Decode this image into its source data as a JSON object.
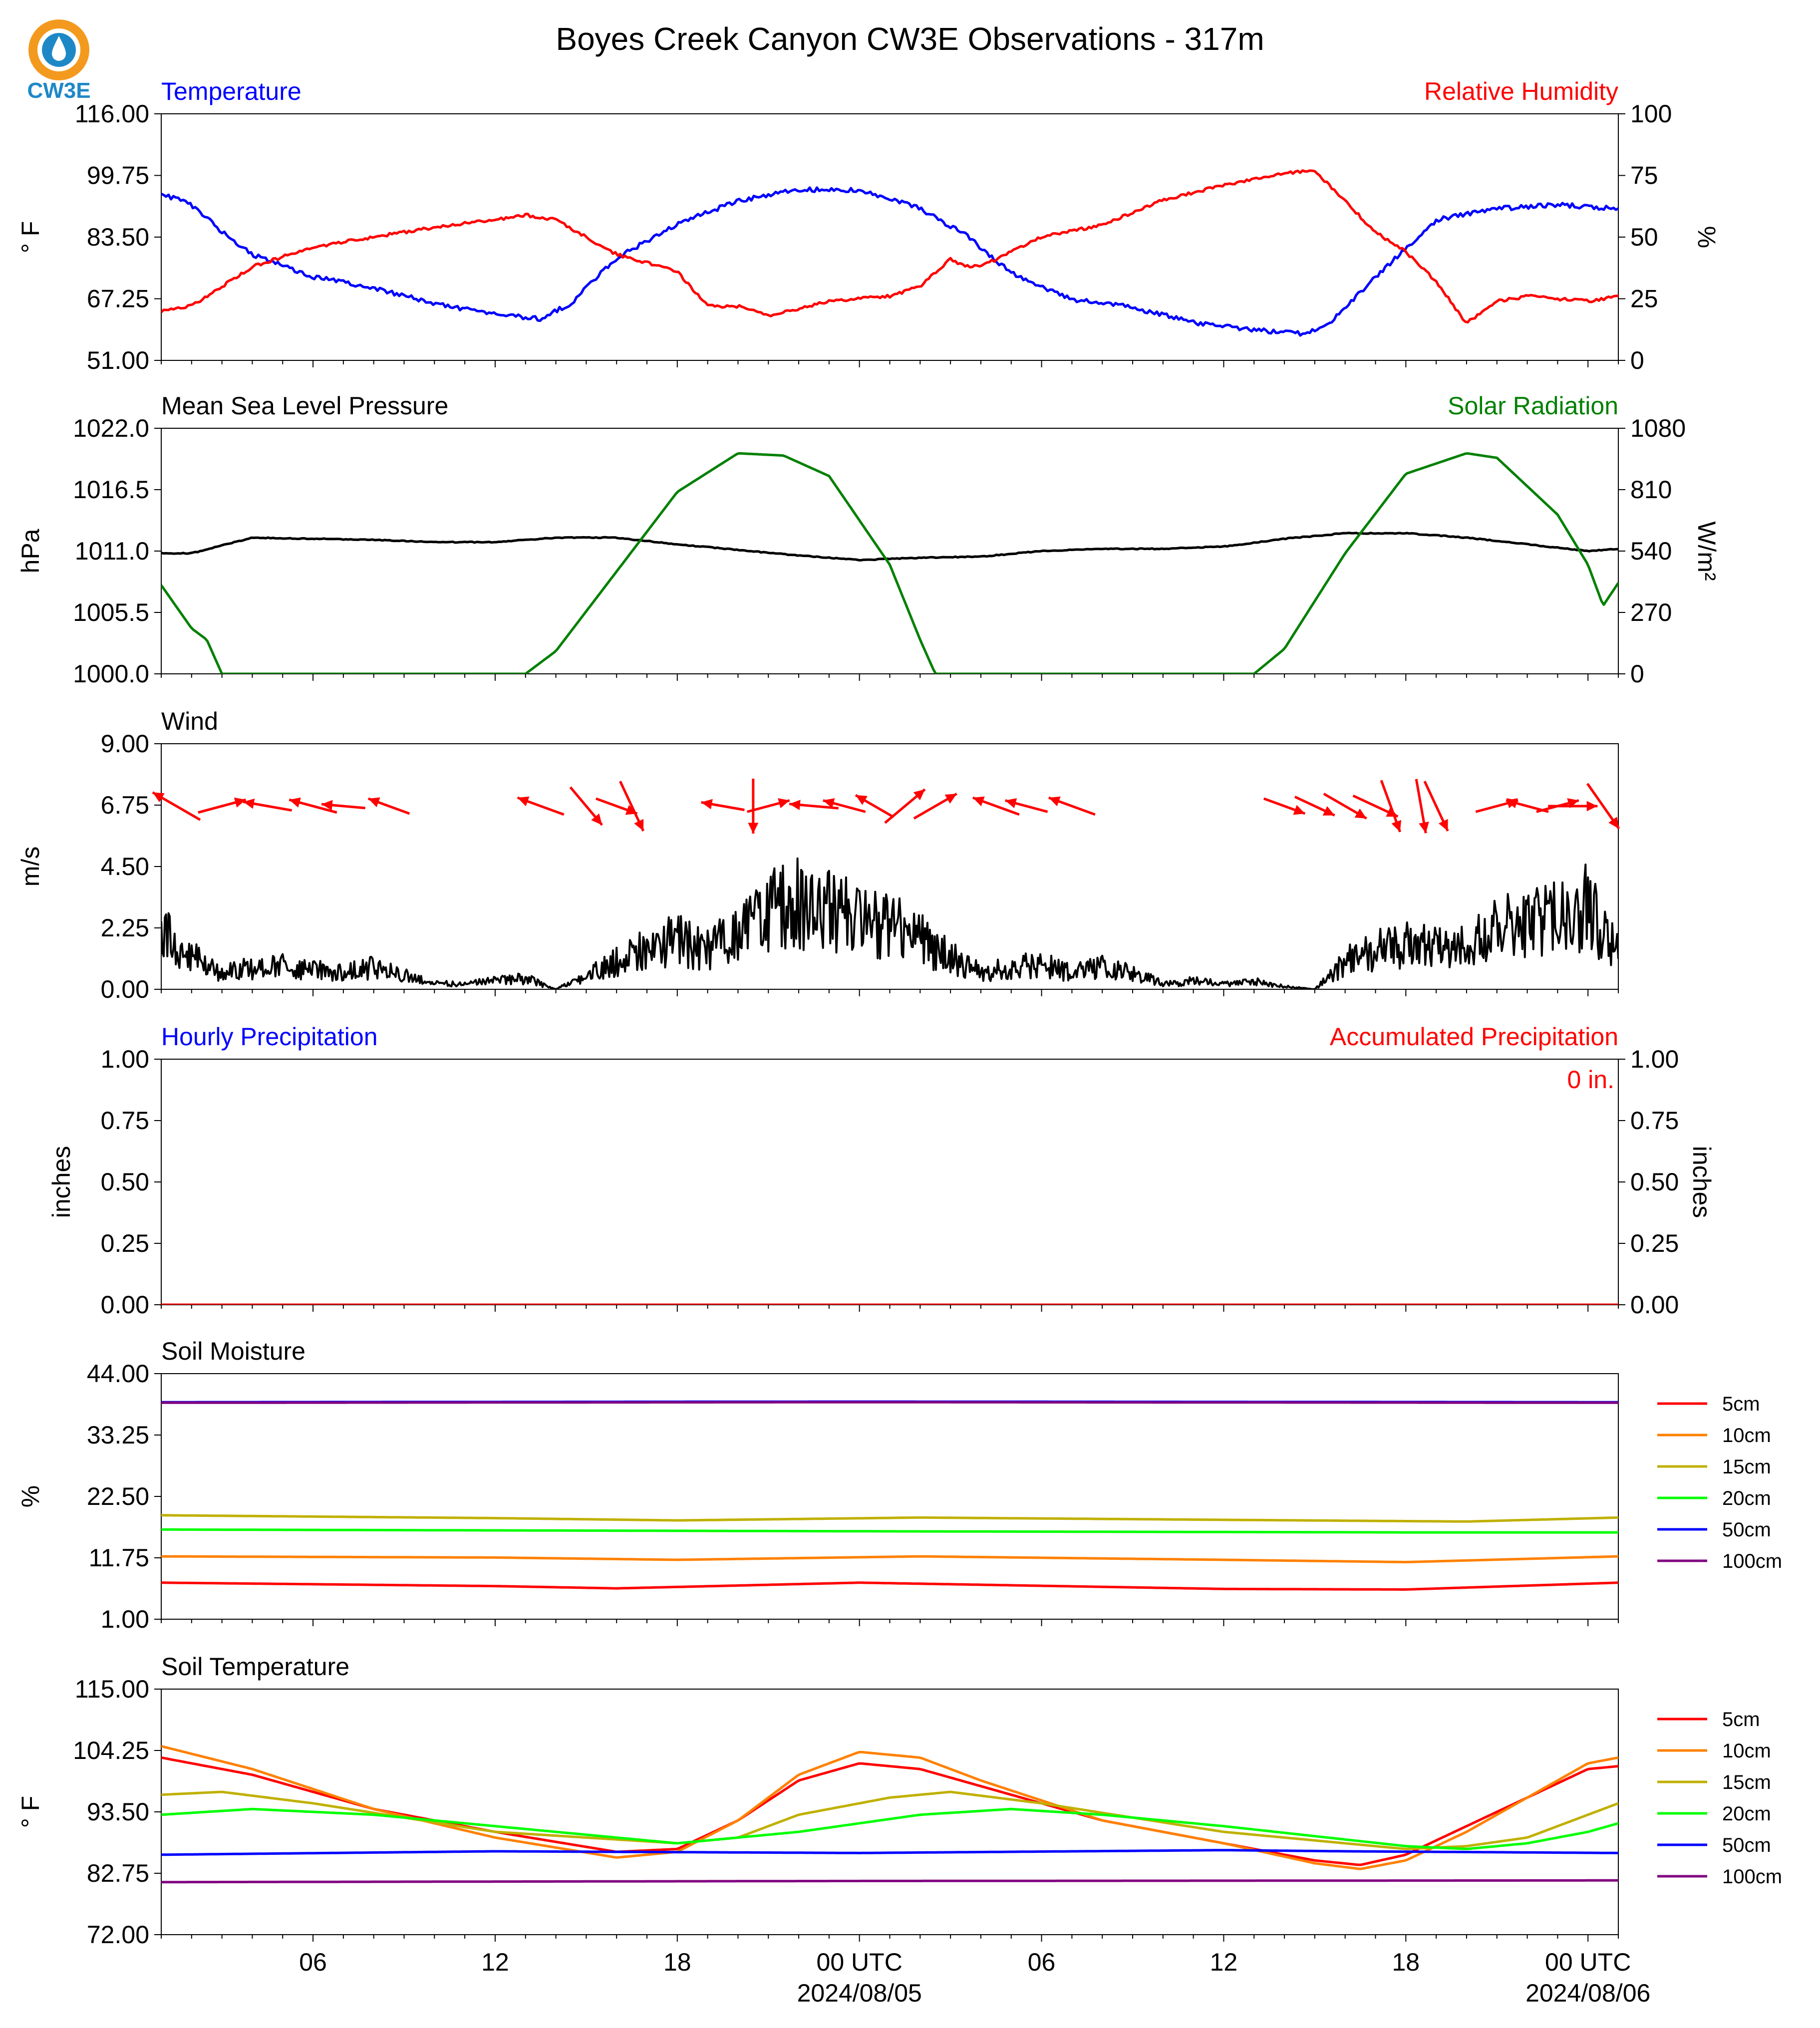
{
  "title": "Boyes Creek Canyon CW3E Observations - 317m",
  "logo": {
    "text": "CW3E",
    "color": "#1e88c7",
    "accent": "#f39a1e"
  },
  "time_axis": {
    "ticks": [
      {
        "hour": 6,
        "label": "06"
      },
      {
        "hour": 12,
        "label": "12"
      },
      {
        "hour": 18,
        "label": "18"
      },
      {
        "hour": 24,
        "label": "00 UTC",
        "date": "2024/08/05"
      },
      {
        "hour": 30,
        "label": "06"
      },
      {
        "hour": 36,
        "label": "12"
      },
      {
        "hour": 42,
        "label": "18"
      },
      {
        "hour": 48,
        "label": "00 UTC",
        "date": "2024/08/06"
      }
    ]
  },
  "chart_data": [
    {
      "type": "line",
      "name": "temperature-humidity",
      "left_title": "Temperature",
      "right_title": "Relative Humidity",
      "ylabel_left": "° F",
      "ylabel_right": "%",
      "ylim_left": [
        51,
        116
      ],
      "ylim_right": [
        0,
        100
      ],
      "yticks_left": [
        "51.00",
        "67.25",
        "83.50",
        "99.75",
        "116.00"
      ],
      "yticks_right": [
        "0",
        "25",
        "50",
        "75",
        "100"
      ],
      "colors": {
        "left": "#0000ff",
        "right": "#ff0000"
      },
      "series": [
        {
          "name": "Temperature",
          "axis": "left",
          "color": "#0000ff",
          "x": [
            1,
            2,
            3,
            4,
            6,
            8,
            10,
            12,
            13.5,
            14.5,
            16,
            18,
            20,
            22,
            24,
            26,
            27.5,
            29,
            31,
            33,
            35,
            37,
            38.7,
            39.5,
            41,
            43,
            45,
            47,
            49
          ],
          "y": [
            95,
            92,
            85,
            79,
            73,
            70,
            66,
            63,
            62,
            66,
            78,
            87,
            93,
            96,
            96,
            91,
            84,
            74,
            67,
            65,
            61,
            59,
            58,
            61,
            73,
            88,
            91,
            92,
            91
          ]
        },
        {
          "name": "Relative Humidity",
          "axis": "right",
          "color": "#ff0000",
          "x": [
            1,
            2,
            3,
            4,
            6,
            8,
            10,
            12,
            13,
            14,
            16,
            18,
            19,
            20,
            21,
            23,
            25,
            26,
            27,
            27.5,
            28,
            30,
            32,
            34,
            36,
            38,
            39,
            41,
            42,
            43,
            44,
            45,
            46,
            47,
            48,
            49
          ],
          "y": [
            20,
            22,
            30,
            38,
            46,
            50,
            54,
            57,
            59,
            57,
            43,
            36,
            22,
            22,
            18,
            24,
            26,
            30,
            41,
            38,
            38,
            50,
            55,
            65,
            71,
            76,
            77,
            52,
            44,
            32,
            15,
            24,
            26,
            25,
            24,
            26
          ]
        }
      ]
    },
    {
      "type": "line",
      "name": "pressure-solar",
      "left_title": "Mean Sea Level Pressure",
      "right_title": "Solar Radiation",
      "ylabel_left": "hPa",
      "ylabel_right": "W/m²",
      "ylim_left": [
        1000,
        1022
      ],
      "ylim_right": [
        0,
        1080
      ],
      "yticks_left": [
        "1000.0",
        "1005.5",
        "1011.0",
        "1016.5",
        "1022.0"
      ],
      "yticks_right": [
        "0",
        "270",
        "540",
        "810",
        "1080"
      ],
      "series": [
        {
          "name": "Mean Sea Level Pressure",
          "axis": "left",
          "color": "#000000",
          "x": [
            1,
            2,
            4,
            6,
            8,
            10,
            12,
            14,
            16,
            18,
            20,
            22,
            24,
            26,
            28,
            30,
            32,
            34,
            36,
            38,
            40,
            42,
            44,
            46,
            48,
            49
          ],
          "y": [
            1010.8,
            1010.8,
            1012.2,
            1012.1,
            1012.0,
            1011.8,
            1011.8,
            1012.2,
            1012.2,
            1011.6,
            1011.1,
            1010.6,
            1010.2,
            1010.4,
            1010.5,
            1011.0,
            1011.2,
            1011.2,
            1011.4,
            1012.1,
            1012.6,
            1012.6,
            1012.2,
            1011.6,
            1011.0,
            1011.2
          ]
        },
        {
          "name": "Solar Radiation",
          "axis": "right",
          "color": "#008000",
          "x": [
            1,
            2,
            2.5,
            3,
            13,
            14,
            16,
            18,
            20,
            21.5,
            23,
            25,
            26,
            26.5,
            27.5,
            37,
            38,
            40,
            42,
            44,
            45,
            47,
            48,
            48.5,
            49
          ],
          "y": [
            390,
            200,
            150,
            0,
            0,
            100,
            450,
            800,
            970,
            960,
            870,
            480,
            150,
            0,
            0,
            0,
            110,
            530,
            880,
            970,
            950,
            700,
            480,
            300,
            400
          ]
        }
      ]
    },
    {
      "type": "line",
      "name": "wind",
      "left_title": "Wind",
      "ylabel_left": "m/s",
      "ylim_left": [
        0,
        9
      ],
      "yticks_left": [
        "0.00",
        "2.25",
        "4.50",
        "6.75",
        "9.00"
      ],
      "series": [
        {
          "name": "Wind Speed",
          "axis": "left",
          "color": "#000000",
          "x": [
            1,
            2,
            3,
            4,
            5,
            6,
            7,
            8,
            9,
            10,
            11,
            12,
            13,
            14,
            15,
            16,
            17,
            18,
            19,
            20,
            21,
            22,
            23,
            24,
            25,
            26,
            27,
            28,
            29,
            30,
            31,
            32,
            33,
            34,
            35,
            36,
            37,
            38,
            39,
            40,
            41,
            42,
            43,
            44,
            45,
            46,
            47,
            48,
            49
          ],
          "y": [
            2.0,
            1.2,
            0.6,
            0.8,
            0.9,
            0.7,
            0.6,
            0.8,
            0.5,
            0.2,
            0.2,
            0.3,
            0.4,
            0.0,
            0.5,
            1.0,
            1.5,
            1.8,
            1.4,
            2.2,
            2.8,
            3.2,
            2.9,
            2.6,
            2.4,
            1.8,
            1.2,
            0.6,
            0.8,
            0.9,
            0.6,
            0.8,
            0.6,
            0.2,
            0.3,
            0.2,
            0.3,
            0.1,
            0.0,
            1.0,
            1.4,
            1.6,
            1.5,
            1.8,
            2.2,
            2.4,
            2.6,
            3.0,
            1.5
          ]
        }
      ],
      "wind_barbs": [
        {
          "hour": 1.5,
          "speed": 2.0,
          "dir": 300
        },
        {
          "hour": 3,
          "speed": 1.8,
          "dir": 75
        },
        {
          "hour": 4.5,
          "speed": 1.8,
          "dir": 280
        },
        {
          "hour": 6,
          "speed": 1.8,
          "dir": 285
        },
        {
          "hour": 7,
          "speed": 1.6,
          "dir": 275
        },
        {
          "hour": 8.5,
          "speed": 1.6,
          "dir": 290
        },
        {
          "hour": 13.5,
          "speed": 1.8,
          "dir": 290
        },
        {
          "hour": 15,
          "speed": 1.8,
          "dir": 140
        },
        {
          "hour": 16,
          "speed": 1.6,
          "dir": 110
        },
        {
          "hour": 16.5,
          "speed": 2.0,
          "dir": 155
        },
        {
          "hour": 19.5,
          "speed": 1.6,
          "dir": 280
        },
        {
          "hour": 20.5,
          "speed": 2.0,
          "dir": 180
        },
        {
          "hour": 21,
          "speed": 1.6,
          "dir": 75
        },
        {
          "hour": 22.5,
          "speed": 1.8,
          "dir": 275
        },
        {
          "hour": 23.5,
          "speed": 1.6,
          "dir": 285
        },
        {
          "hour": 24.5,
          "speed": 1.6,
          "dir": 300
        },
        {
          "hour": 25.5,
          "speed": 1.9,
          "dir": 50
        },
        {
          "hour": 26.5,
          "speed": 1.8,
          "dir": 60
        },
        {
          "hour": 28.5,
          "speed": 1.8,
          "dir": 290
        },
        {
          "hour": 29.5,
          "speed": 1.6,
          "dir": 285
        },
        {
          "hour": 31,
          "speed": 1.8,
          "dir": 290
        },
        {
          "hour": 38,
          "speed": 1.6,
          "dir": 110
        },
        {
          "hour": 39,
          "speed": 1.6,
          "dir": 115
        },
        {
          "hour": 40,
          "speed": 1.8,
          "dir": 120
        },
        {
          "hour": 41,
          "speed": 1.8,
          "dir": 115
        },
        {
          "hour": 41.5,
          "speed": 2.0,
          "dir": 160
        },
        {
          "hour": 42.5,
          "speed": 2.0,
          "dir": 170
        },
        {
          "hour": 43,
          "speed": 2.0,
          "dir": 155
        },
        {
          "hour": 45,
          "speed": 1.6,
          "dir": 75
        },
        {
          "hour": 46,
          "speed": 1.6,
          "dir": 285
        },
        {
          "hour": 47,
          "speed": 1.6,
          "dir": 75
        },
        {
          "hour": 47.5,
          "speed": 1.8,
          "dir": 90
        },
        {
          "hour": 48.5,
          "speed": 2.0,
          "dir": 145
        }
      ],
      "barb_color": "#ff0000"
    },
    {
      "type": "line",
      "name": "precipitation",
      "left_title": "Hourly Precipitation",
      "right_title": "Accumulated Precipitation",
      "annotation": "0 in.",
      "ylabel_left": "inches",
      "ylabel_right": "inches",
      "ylim_left": [
        0,
        1
      ],
      "ylim_right": [
        0,
        1
      ],
      "yticks_left": [
        "0.00",
        "0.25",
        "0.50",
        "0.75",
        "1.00"
      ],
      "yticks_right": [
        "0.00",
        "0.25",
        "0.50",
        "0.75",
        "1.00"
      ],
      "colors": {
        "left": "#0000ff",
        "right": "#ff0000"
      },
      "series": [
        {
          "name": "Hourly Precipitation",
          "axis": "left",
          "color": "#0000ff",
          "x": [
            1,
            49
          ],
          "y": [
            0,
            0
          ]
        },
        {
          "name": "Accumulated Precipitation",
          "axis": "right",
          "color": "#ff0000",
          "x": [
            1,
            49
          ],
          "y": [
            0,
            0
          ]
        }
      ]
    },
    {
      "type": "line",
      "name": "soil-moisture",
      "left_title": "Soil Moisture",
      "ylabel_left": "%",
      "ylim_left": [
        1,
        44
      ],
      "yticks_left": [
        "1.00",
        "11.75",
        "22.50",
        "33.25",
        "44.00"
      ],
      "legend": [
        "5cm",
        "10cm",
        "15cm",
        "20cm",
        "50cm",
        "100cm"
      ],
      "series": [
        {
          "name": "5cm",
          "color": "#ff0000",
          "x": [
            1,
            12,
            16,
            24,
            36,
            42,
            49
          ],
          "y": [
            7.4,
            6.8,
            6.4,
            7.4,
            6.3,
            6.2,
            7.4
          ]
        },
        {
          "name": "10cm",
          "color": "#ff8000",
          "x": [
            1,
            12,
            18,
            26,
            36,
            42,
            49
          ],
          "y": [
            12.0,
            11.8,
            11.4,
            12.0,
            11.4,
            11.0,
            12.0
          ]
        },
        {
          "name": "15cm",
          "color": "#c0b000",
          "x": [
            1,
            12,
            18,
            26,
            36,
            44,
            49
          ],
          "y": [
            19.2,
            18.7,
            18.3,
            18.8,
            18.4,
            18.1,
            18.8
          ]
        },
        {
          "name": "20cm",
          "color": "#00ff00",
          "x": [
            1,
            24,
            42,
            49
          ],
          "y": [
            16.7,
            16.4,
            16.2,
            16.2
          ]
        },
        {
          "name": "50cm",
          "color": "#0000ff",
          "x": [
            1,
            24,
            49
          ],
          "y": [
            39.0,
            39.1,
            39.0
          ]
        },
        {
          "name": "100cm",
          "color": "#800080",
          "x": [
            1,
            24,
            49
          ],
          "y": [
            38.9,
            39.0,
            38.9
          ]
        }
      ]
    },
    {
      "type": "line",
      "name": "soil-temperature",
      "left_title": "Soil Temperature",
      "ylabel_left": "° F",
      "ylim_left": [
        72,
        115
      ],
      "yticks_left": [
        "72.00",
        "82.75",
        "93.50",
        "104.25",
        "115.00"
      ],
      "legend": [
        "5cm",
        "10cm",
        "15cm",
        "20cm",
        "50cm",
        "100cm"
      ],
      "series": [
        {
          "name": "5cm",
          "color": "#ff0000",
          "x": [
            1,
            4,
            8,
            12,
            16,
            18,
            20,
            22,
            24,
            26,
            28,
            32,
            36,
            39,
            40.5,
            42,
            44,
            46,
            48,
            49
          ],
          "y": [
            103,
            100,
            94,
            90,
            86.5,
            87,
            92,
            99,
            102,
            101,
            98,
            92,
            88,
            85,
            84.2,
            86,
            91,
            96,
            101,
            101.5
          ]
        },
        {
          "name": "10cm",
          "color": "#ff8000",
          "x": [
            1,
            4,
            8,
            12,
            16,
            18,
            20,
            22,
            24,
            26,
            28,
            32,
            36,
            39,
            40.5,
            42,
            44,
            46,
            48,
            49
          ],
          "y": [
            105,
            101,
            94,
            89,
            85.5,
            86.5,
            92,
            100,
            104,
            103,
            99,
            92,
            88,
            84.5,
            83.5,
            85,
            90,
            96,
            102,
            103
          ]
        },
        {
          "name": "15cm",
          "color": "#c0b000",
          "x": [
            1,
            3,
            6,
            12,
            18,
            20,
            22,
            25,
            27,
            30,
            36,
            42,
            44,
            46,
            48,
            49
          ],
          "y": [
            96.5,
            97,
            95,
            90,
            88,
            89,
            93,
            96,
            97,
            95,
            90,
            87,
            87.5,
            89,
            93,
            95
          ]
        },
        {
          "name": "20cm",
          "color": "#00ff00",
          "x": [
            1,
            4,
            8,
            12,
            18,
            22,
            26,
            29,
            32,
            36,
            42,
            44,
            46,
            48,
            49
          ],
          "y": [
            93,
            94,
            93,
            91,
            88,
            90,
            93,
            94,
            93,
            91,
            87.5,
            87,
            88,
            90,
            91.5
          ]
        },
        {
          "name": "50cm",
          "color": "#0000ff",
          "x": [
            1,
            12,
            24,
            36,
            40,
            49
          ],
          "y": [
            86.0,
            86.6,
            86.3,
            86.8,
            86.6,
            86.3
          ]
        },
        {
          "name": "100cm",
          "color": "#800080",
          "x": [
            1,
            24,
            49
          ],
          "y": [
            81.2,
            81.4,
            81.5
          ]
        }
      ]
    }
  ]
}
